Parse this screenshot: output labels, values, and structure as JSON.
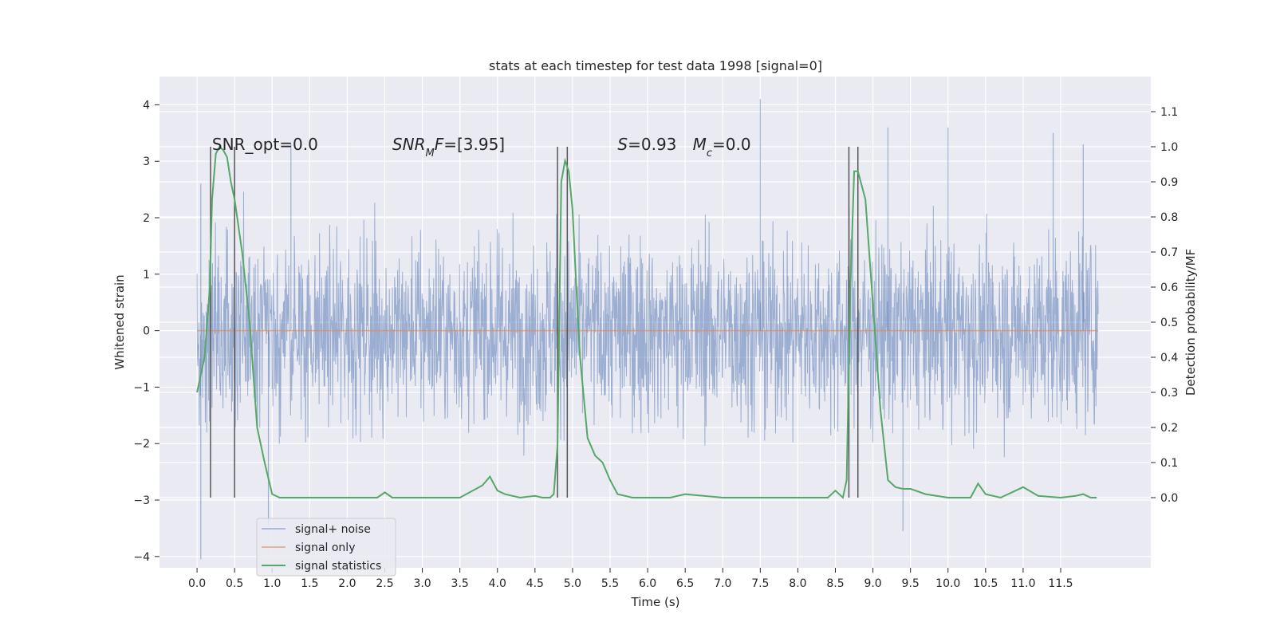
{
  "chart_data": {
    "type": "line",
    "title": "stats at each timestep for test data 1998 [signal=0]",
    "xlabel": "Time (s)",
    "ylabel_left": "Whitened strain",
    "ylabel_right": "Detection probability/MF",
    "xlim": [
      -0.5,
      12.7
    ],
    "ylim_left": [
      -4.2,
      4.5
    ],
    "ylim_right": [
      -0.2,
      1.2
    ],
    "x_ticks": [
      0.0,
      0.5,
      1.0,
      1.5,
      2.0,
      2.5,
      3.0,
      3.5,
      4.0,
      4.5,
      5.0,
      5.5,
      6.0,
      6.5,
      7.0,
      7.5,
      8.0,
      8.5,
      9.0,
      9.5,
      10.0,
      10.5,
      11.0,
      11.5
    ],
    "x_tick_labels": [
      "0.0",
      "0.5",
      "1.0",
      "1.5",
      "2.0",
      "2.5",
      "3.0",
      "3.5",
      "4.0",
      "4.5",
      "5.0",
      "5.5",
      "6.0",
      "6.5",
      "7.0",
      "7.5",
      "8.0",
      "8.5",
      "9.0",
      "9.5",
      "10.0",
      "10.5",
      "11.0",
      "11.5"
    ],
    "y_left_ticks": [
      4,
      3,
      2,
      1,
      0,
      -1,
      -2,
      -3,
      -4
    ],
    "y_left_tick_labels": [
      "4",
      "3",
      "2",
      "1",
      "0",
      "−1",
      "−2",
      "−3",
      "−4"
    ],
    "y_right_ticks": [
      1.1,
      1.0,
      0.9,
      0.8,
      0.7,
      0.6,
      0.5,
      0.4,
      0.3,
      0.2,
      0.1,
      0.0
    ],
    "y_right_tick_labels": [
      "1.1",
      "1.0",
      "0.9",
      "0.8",
      "0.7",
      "0.6",
      "0.5",
      "0.4",
      "0.3",
      "0.2",
      "0.1",
      "0.0"
    ],
    "grid": true,
    "legend_position": "lower-left",
    "series": [
      {
        "name": "signal+ noise",
        "axis": "left",
        "color": "#4c72b0",
        "style": "noise",
        "x_range": [
          0.0,
          12.0
        ],
        "band": [
          -1.9,
          1.9
        ],
        "sample_extremes": [
          {
            "x": 0.05,
            "y": -4.05
          },
          {
            "x": 0.05,
            "y": 2.6
          },
          {
            "x": 0.95,
            "y": -3.45
          },
          {
            "x": 1.25,
            "y": 3.3
          },
          {
            "x": 7.5,
            "y": 4.1
          },
          {
            "x": 9.2,
            "y": 3.6
          },
          {
            "x": 9.4,
            "y": -3.55
          },
          {
            "x": 10.0,
            "y": 3.6
          },
          {
            "x": 11.4,
            "y": 3.5
          },
          {
            "x": 11.8,
            "y": 3.3
          }
        ]
      },
      {
        "name": "signal only",
        "axis": "left",
        "color": "#dd8452",
        "x": [
          0.0,
          12.0
        ],
        "y": [
          0.0,
          0.0
        ]
      },
      {
        "name": "signal statistics",
        "axis": "right",
        "color": "#55a868",
        "x": [
          0.0,
          0.1,
          0.17,
          0.2,
          0.25,
          0.3,
          0.35,
          0.4,
          0.45,
          0.5,
          0.6,
          0.7,
          0.8,
          0.9,
          1.0,
          1.1,
          1.3,
          1.6,
          2.0,
          2.2,
          2.4,
          2.5,
          2.6,
          2.8,
          3.0,
          3.5,
          3.8,
          3.9,
          4.0,
          4.1,
          4.3,
          4.5,
          4.6,
          4.7,
          4.75,
          4.8,
          4.85,
          4.9,
          4.95,
          5.0,
          5.05,
          5.1,
          5.2,
          5.3,
          5.4,
          5.5,
          5.6,
          5.8,
          6.0,
          6.3,
          6.5,
          7.0,
          7.5,
          8.0,
          8.3,
          8.4,
          8.5,
          8.6,
          8.65,
          8.7,
          8.75,
          8.8,
          8.9,
          9.0,
          9.1,
          9.2,
          9.3,
          9.4,
          9.5,
          9.7,
          10.0,
          10.3,
          10.4,
          10.5,
          10.7,
          10.9,
          11.0,
          11.2,
          11.5,
          11.7,
          11.8,
          11.9,
          11.98
        ],
        "y": [
          0.3,
          0.4,
          0.6,
          0.85,
          0.98,
          1.0,
          0.99,
          0.97,
          0.9,
          0.85,
          0.7,
          0.5,
          0.2,
          0.1,
          0.01,
          0.0,
          0.0,
          0.0,
          0.0,
          0.0,
          0.0,
          0.015,
          0.0,
          0.0,
          0.0,
          0.0,
          0.035,
          0.06,
          0.02,
          0.01,
          0.0,
          0.005,
          0.0,
          0.0,
          0.01,
          0.15,
          0.9,
          0.96,
          0.93,
          0.82,
          0.6,
          0.4,
          0.17,
          0.12,
          0.1,
          0.05,
          0.01,
          0.0,
          0.0,
          0.0,
          0.01,
          0.0,
          0.0,
          0.0,
          0.0,
          0.0,
          0.02,
          0.0,
          0.05,
          0.6,
          0.93,
          0.93,
          0.85,
          0.55,
          0.25,
          0.05,
          0.03,
          0.025,
          0.025,
          0.01,
          0.0,
          0.0,
          0.04,
          0.01,
          0.0,
          0.02,
          0.03,
          0.005,
          0.0,
          0.005,
          0.01,
          0.0,
          0.0
        ]
      }
    ],
    "vlines": [
      0.18,
      0.5,
      4.8,
      4.93,
      8.68,
      8.8
    ],
    "vline_color": "#555555",
    "vline_range": [
      -0.0,
      1.0
    ],
    "annotations": [
      {
        "segments": [
          {
            "text": "SNR_opt=0.0",
            "italic": false
          }
        ]
      },
      {
        "segments": [
          {
            "text": "SNR",
            "italic": true
          },
          {
            "text": "M",
            "italic": true,
            "sub": true
          },
          {
            "text": "F",
            "italic": true
          },
          {
            "text": "=[3.95]",
            "italic": false
          }
        ]
      },
      {
        "segments": [
          {
            "text": "S",
            "italic": true
          },
          {
            "text": "=0.93",
            "italic": false
          }
        ]
      },
      {
        "segments": [
          {
            "text": "M",
            "italic": true
          },
          {
            "text": "c",
            "italic": true,
            "sub": true
          },
          {
            "text": "=0.0",
            "italic": false
          }
        ]
      }
    ],
    "legend": [
      "signal+ noise",
      "signal only",
      "signal statistics"
    ]
  },
  "colors": {
    "plot_bg": "#eaeaf2",
    "grid": "#ffffff",
    "noise": "#4c72b0",
    "signal": "#dd8452",
    "stats": "#55a868",
    "vline": "#555555"
  }
}
